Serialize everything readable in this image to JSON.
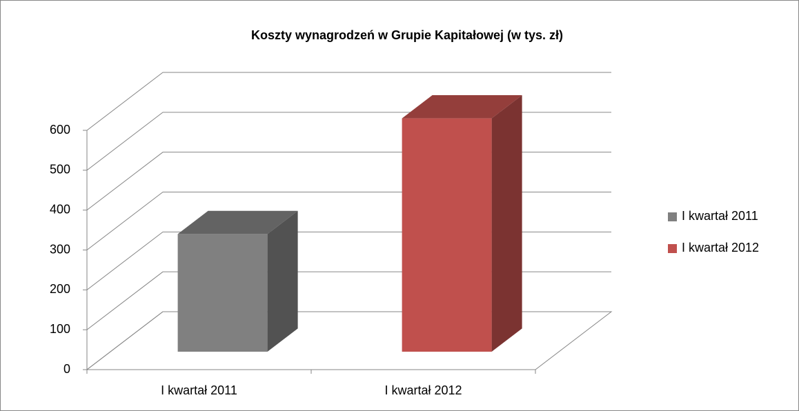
{
  "chart_data": {
    "type": "bar3d",
    "title": "Koszty wynagrodzeń w Grupie Kapitałowej (w tys. zł)",
    "categories": [
      "I kwartał 2011",
      "I kwartał 2012"
    ],
    "series": [
      {
        "name": "I kwartał 2011",
        "color": "#808080",
        "values": [
          295,
          null
        ]
      },
      {
        "name": "I kwartał 2012",
        "color": "#c0504d",
        "values": [
          null,
          585
        ]
      }
    ],
    "ylim": [
      0,
      600
    ],
    "yticks": [
      0,
      100,
      200,
      300,
      400,
      500,
      600
    ],
    "grid": true,
    "legend": "right"
  }
}
